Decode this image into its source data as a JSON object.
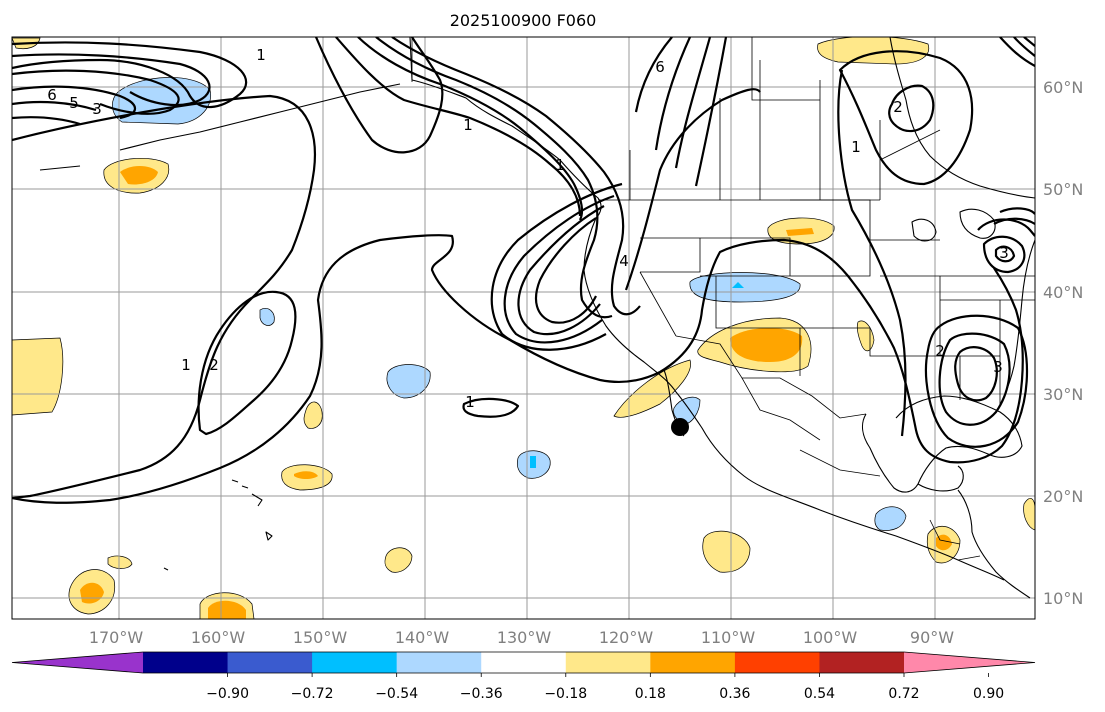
{
  "title": "2025100900 F060",
  "lon_ticks": [
    "170°W",
    "160°W",
    "150°W",
    "140°W",
    "130°W",
    "120°W",
    "110°W",
    "100°W",
    "90°W"
  ],
  "lat_ticks": [
    "60°N",
    "50°N",
    "40°N",
    "30°N",
    "20°N",
    "10°N"
  ],
  "contour_labels": [
    "6",
    "5",
    "3",
    "1",
    "1",
    "2",
    "1",
    "6",
    "1",
    "1",
    "2",
    "3",
    "2",
    "1",
    "4",
    "3"
  ],
  "colorbar": {
    "tick_labels": [
      "−0.90",
      "−0.72",
      "−0.54",
      "−0.36",
      "−0.18",
      "0.18",
      "0.36",
      "0.54",
      "0.72",
      "0.90"
    ],
    "colors": [
      "#9933cc",
      "#00008b",
      "#3a5bcf",
      "#00bfff",
      "#add8ff",
      "#ffffff",
      "#ffe88a",
      "#ffa500",
      "#ff4000",
      "#b22222",
      "#ff88aa"
    ]
  }
}
